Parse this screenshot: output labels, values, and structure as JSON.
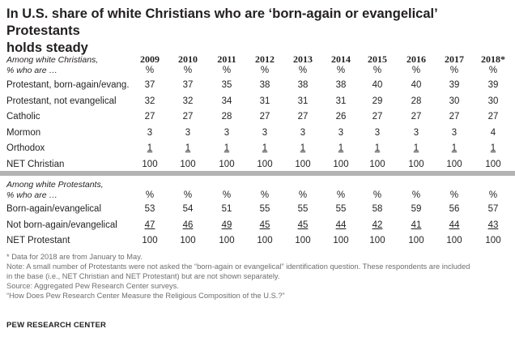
{
  "title_line1": "In U.S. share of white Christians who are ‘born-again  or evangelical’ Protestants",
  "title_line2": "holds steady",
  "years": [
    "2009",
    "2010",
    "2011",
    "2012",
    "2013",
    "2014",
    "2015",
    "2016",
    "2017",
    "2018*"
  ],
  "section1": {
    "label_line1": "Among white Christians,",
    "label_line2": "% who are …",
    "percent_row": [
      "%",
      "%",
      "%",
      "%",
      "%",
      "%",
      "%",
      "%",
      "%",
      "%"
    ]
  },
  "section2": {
    "label_line1": "Among white Protestants,",
    "label_line2": "% who are …",
    "percent_row": [
      "%",
      "%",
      "%",
      "%",
      "%",
      "%",
      "%",
      "%",
      "%",
      "%"
    ]
  },
  "chart_data": {
    "type": "table",
    "title": "In U.S. share of white Christians who are ‘born-again  or evangelical’ Protestants holds steady",
    "columns": [
      "2009",
      "2010",
      "2011",
      "2012",
      "2013",
      "2014",
      "2015",
      "2016",
      "2017",
      "2018*"
    ],
    "sections": [
      {
        "name": "Among white Christians, % who are …",
        "rows": [
          {
            "label": "Protestant, born-again/evang.",
            "values": [
              37,
              37,
              35,
              38,
              38,
              38,
              40,
              40,
              39,
              39
            ],
            "underline": false
          },
          {
            "label": "Protestant, not evangelical",
            "values": [
              32,
              32,
              34,
              31,
              31,
              31,
              29,
              28,
              30,
              30
            ],
            "underline": false
          },
          {
            "label": "Catholic",
            "values": [
              27,
              27,
              28,
              27,
              27,
              26,
              27,
              27,
              27,
              27
            ],
            "underline": false
          },
          {
            "label": "Mormon",
            "values": [
              3,
              3,
              3,
              3,
              3,
              3,
              3,
              3,
              3,
              4
            ],
            "underline": false
          },
          {
            "label": "Orthodox",
            "values": [
              1,
              1,
              1,
              1,
              1,
              1,
              1,
              1,
              1,
              1
            ],
            "underline": true
          },
          {
            "label": "NET Christian",
            "values": [
              100,
              100,
              100,
              100,
              100,
              100,
              100,
              100,
              100,
              100
            ],
            "underline": false
          }
        ]
      },
      {
        "name": "Among white Protestants, % who are …",
        "rows": [
          {
            "label": "Born-again/evangelical",
            "values": [
              53,
              54,
              51,
              55,
              55,
              55,
              58,
              59,
              56,
              57
            ],
            "underline": false
          },
          {
            "label": "Not born-again/evangelical",
            "values": [
              47,
              46,
              49,
              45,
              45,
              44,
              42,
              41,
              44,
              43
            ],
            "underline": true
          },
          {
            "label": "NET Protestant",
            "values": [
              100,
              100,
              100,
              100,
              100,
              100,
              100,
              100,
              100,
              100
            ],
            "underline": false
          }
        ]
      }
    ]
  },
  "footnotes": {
    "data_note": "* Data for 2018 are from January to May.",
    "note_line1": "Note: A small number of Protestants were not asked the “born-again or evangelical” identification question. These respondents are included",
    "note_line2": "in the base (i.e., NET Christian and NET Protestant) but are not shown separately.",
    "source": "Source: Aggregated Pew Research Center surveys.",
    "report": "“How Does Pew Research Center Measure the Religious Composition of the U.S.?”",
    "org": "PEW RESEARCH CENTER"
  }
}
